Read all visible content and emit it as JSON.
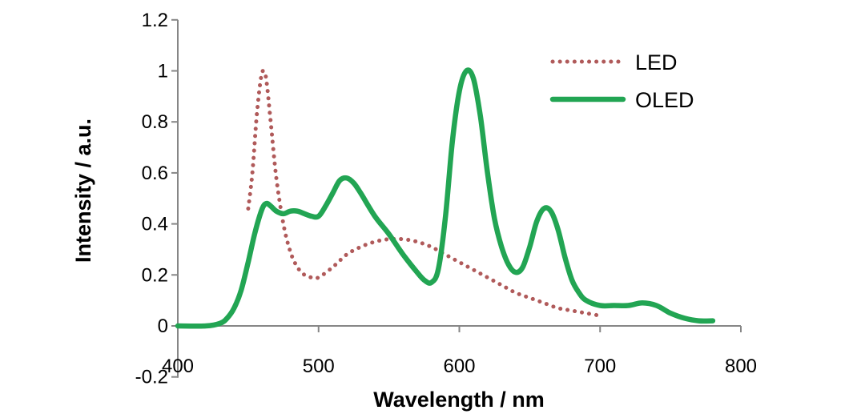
{
  "chart_data": {
    "type": "line",
    "title": "",
    "xlabel": "Wavelength / nm",
    "ylabel": "Intensity / a.u.",
    "xlim": [
      400,
      800
    ],
    "ylim": [
      -0.2,
      1.2
    ],
    "x_ticks": [
      400,
      500,
      600,
      700,
      800
    ],
    "x_tick_labels": [
      "400",
      "500",
      "600",
      "700",
      "800"
    ],
    "y_ticks": [
      1.2,
      1,
      0.8,
      0.6,
      0.4,
      0.2,
      0,
      -0.2
    ],
    "y_tick_labels": [
      "1.2",
      "1",
      "0.8",
      "0.6",
      "0.4",
      "0.2",
      "0",
      "-0.2"
    ],
    "grid": false,
    "legend_position": "top-right",
    "series": [
      {
        "name": "LED",
        "style": "dotted",
        "color": "#b05a5a",
        "x": [
          450,
          453,
          456,
          459,
          461,
          463,
          466,
          470,
          475,
          480,
          485,
          490,
          495,
          500,
          510,
          520,
          530,
          540,
          550,
          560,
          570,
          580,
          590,
          600,
          610,
          620,
          630,
          640,
          650,
          660,
          670,
          680,
          690,
          700
        ],
        "y": [
          0.46,
          0.6,
          0.82,
          0.97,
          1.0,
          0.96,
          0.8,
          0.58,
          0.4,
          0.29,
          0.23,
          0.2,
          0.19,
          0.19,
          0.23,
          0.28,
          0.31,
          0.33,
          0.34,
          0.34,
          0.33,
          0.31,
          0.28,
          0.25,
          0.22,
          0.19,
          0.16,
          0.13,
          0.11,
          0.09,
          0.07,
          0.06,
          0.05,
          0.04
        ]
      },
      {
        "name": "OLED",
        "style": "solid",
        "color": "#22a553",
        "x": [
          400,
          420,
          430,
          435,
          440,
          445,
          450,
          455,
          460,
          463,
          466,
          470,
          475,
          480,
          485,
          490,
          495,
          500,
          505,
          510,
          515,
          520,
          525,
          530,
          540,
          550,
          560,
          570,
          575,
          580,
          585,
          590,
          595,
          600,
          605,
          610,
          615,
          620,
          625,
          630,
          635,
          640,
          645,
          650,
          655,
          660,
          665,
          670,
          675,
          680,
          685,
          690,
          700,
          710,
          720,
          730,
          740,
          750,
          760,
          770,
          780
        ],
        "y": [
          0.0,
          0.0,
          0.01,
          0.03,
          0.07,
          0.14,
          0.25,
          0.37,
          0.46,
          0.48,
          0.47,
          0.45,
          0.44,
          0.45,
          0.45,
          0.44,
          0.43,
          0.43,
          0.47,
          0.52,
          0.57,
          0.58,
          0.56,
          0.52,
          0.43,
          0.36,
          0.28,
          0.21,
          0.18,
          0.17,
          0.22,
          0.42,
          0.72,
          0.92,
          1.0,
          0.97,
          0.82,
          0.6,
          0.42,
          0.31,
          0.24,
          0.21,
          0.23,
          0.31,
          0.41,
          0.46,
          0.45,
          0.38,
          0.27,
          0.18,
          0.13,
          0.1,
          0.08,
          0.08,
          0.08,
          0.09,
          0.08,
          0.05,
          0.03,
          0.02,
          0.02
        ]
      }
    ]
  }
}
